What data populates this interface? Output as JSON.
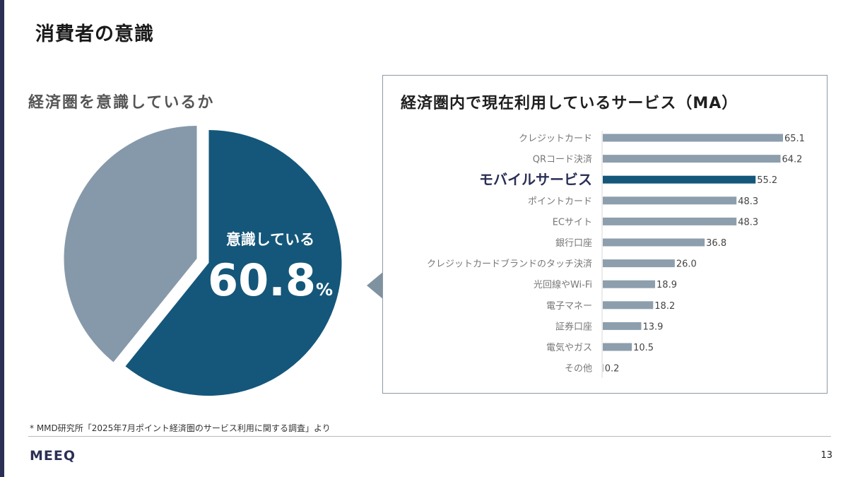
{
  "page": {
    "title": "消費者の意識",
    "footnote": "* MMD研究所「2025年7月ポイント経済圏のサービス利用に関する調査」より",
    "logo": "MEEQ",
    "page_number": "13"
  },
  "colors": {
    "dark": "#14577a",
    "gray": "#8699aa",
    "bar": "#8d9ead",
    "highlight_text": "#2b2f55"
  },
  "chart_data": [
    {
      "type": "pie",
      "title": "経済圏を意識しているか",
      "slices": [
        {
          "label": "意識している",
          "value": 60.8
        },
        {
          "label": "",
          "value": 39.2
        }
      ],
      "center_label": "意識している",
      "center_value": "60.8",
      "center_unit": "%"
    },
    {
      "type": "bar",
      "orientation": "horizontal",
      "title": "経済圏内で現在利用しているサービス（MA）",
      "categories": [
        "クレジットカード",
        "QRコード決済",
        "モバイルサービス",
        "ポイントカード",
        "ECサイト",
        "銀行口座",
        "クレジットカードブランドのタッチ決済",
        "光回線やWi-Fi",
        "電子マネー",
        "証券口座",
        "電気やガス",
        "その他"
      ],
      "values": [
        65.1,
        64.2,
        55.2,
        48.3,
        48.3,
        36.8,
        26.0,
        18.9,
        18.2,
        13.9,
        10.5,
        0.2
      ],
      "value_labels": [
        "65.1",
        "64.2",
        "55.2",
        "48.3",
        "48.3",
        "36.8",
        "26.0",
        "18.9",
        "18.2",
        "13.9",
        "10.5",
        "0.2"
      ],
      "highlight": "モバイルサービス",
      "xlim": [
        0,
        65.1
      ]
    }
  ]
}
